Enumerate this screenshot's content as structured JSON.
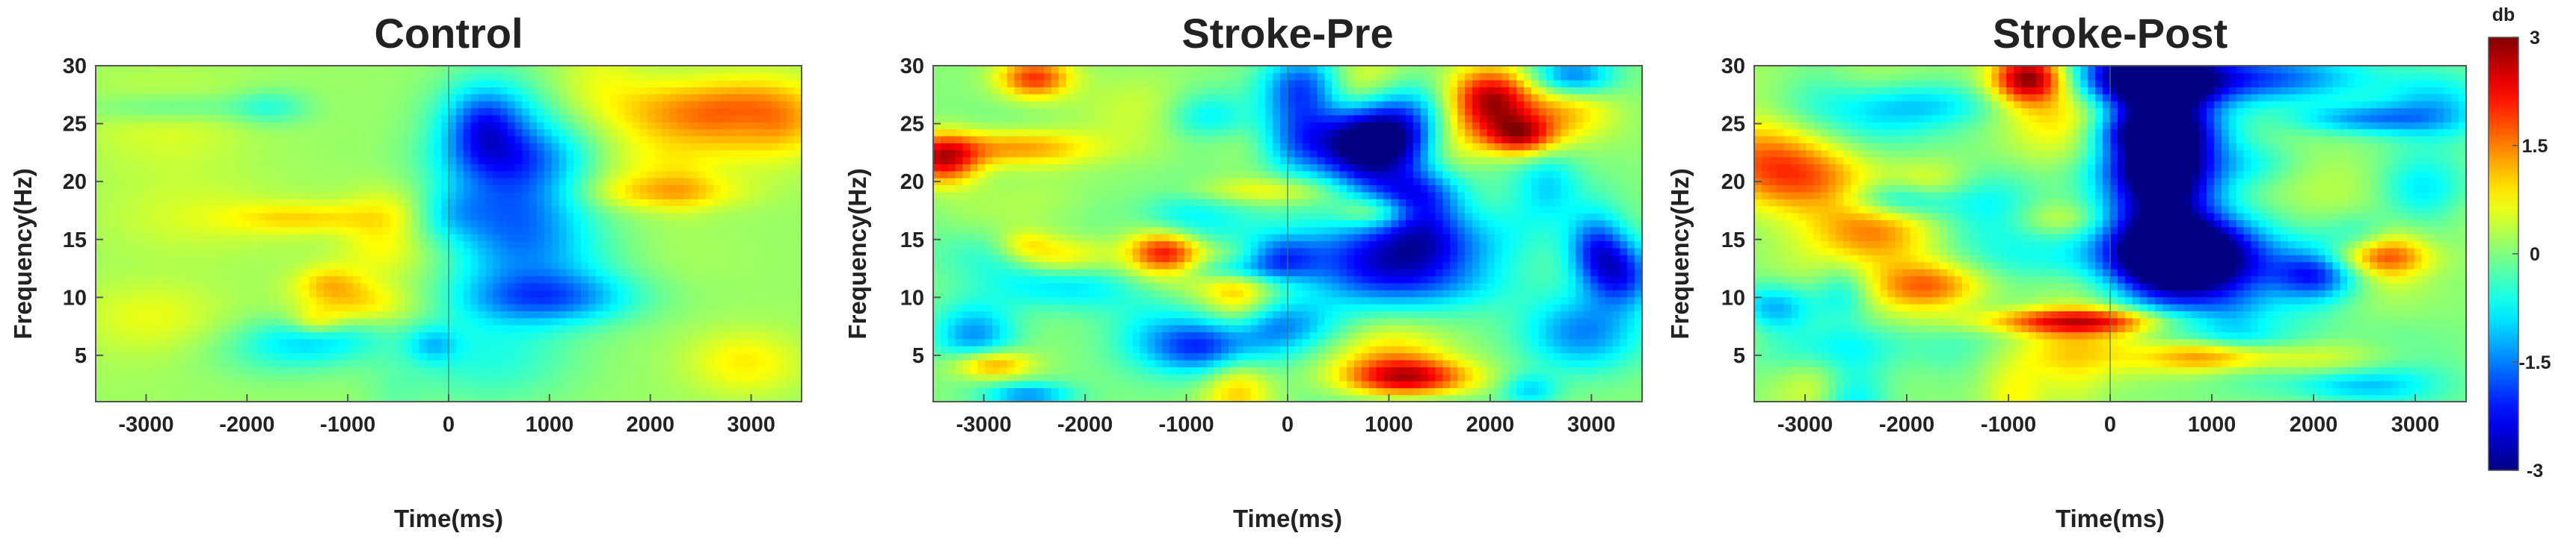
{
  "chart_data": [
    {
      "type": "heatmap",
      "title": "Control",
      "xlabel": "Time(ms)",
      "ylabel": "Frequency(Hz)",
      "x_ticks": [
        -3000,
        -2000,
        -1000,
        0,
        1000,
        2000,
        3000
      ],
      "y_ticks": [
        5,
        10,
        15,
        20,
        25,
        30
      ],
      "xlim": [
        -3500,
        3500
      ],
      "ylim": [
        1,
        30
      ],
      "grid": false,
      "baseline_db": 0.15,
      "noise_db": 0.55,
      "seed": 7,
      "features": [
        {
          "t": 600,
          "f": 20,
          "st": 500,
          "sf": 5,
          "db": -1.9
        },
        {
          "t": 350,
          "f": 25,
          "st": 300,
          "sf": 2.5,
          "db": -1.2
        },
        {
          "t": 1000,
          "f": 10,
          "st": 600,
          "sf": 1.6,
          "db": -1.5
        },
        {
          "t": 900,
          "f": 14,
          "st": 600,
          "sf": 3,
          "db": -0.8
        },
        {
          "t": 2900,
          "f": 26,
          "st": 500,
          "sf": 2,
          "db": 0.8
        },
        {
          "t": -2800,
          "f": 25,
          "st": 600,
          "sf": 3,
          "db": 0.4
        },
        {
          "t": -2500,
          "f": 17,
          "st": 700,
          "sf": 2.5,
          "db": 0.35
        },
        {
          "t": 400,
          "f": 5,
          "st": 600,
          "sf": 3,
          "db": -0.7
        }
      ]
    },
    {
      "type": "heatmap",
      "title": "Stroke-Pre",
      "xlabel": "Time(ms)",
      "ylabel": "Frequency(Hz)",
      "x_ticks": [
        -3000,
        -2000,
        -1000,
        0,
        1000,
        2000,
        3000
      ],
      "y_ticks": [
        5,
        10,
        15,
        20,
        25,
        30
      ],
      "xlim": [
        -3500,
        3500
      ],
      "ylim": [
        1,
        30
      ],
      "grid": false,
      "baseline_db": 0.05,
      "noise_db": 1.05,
      "seed": 21,
      "features": [
        {
          "t": 1000,
          "f": 24,
          "st": 500,
          "sf": 2.5,
          "db": -3.2
        },
        {
          "t": 200,
          "f": 28,
          "st": 300,
          "sf": 2,
          "db": -2.6
        },
        {
          "t": 1100,
          "f": 13,
          "st": 700,
          "sf": 2.5,
          "db": -2.9
        },
        {
          "t": 1300,
          "f": 19,
          "st": 400,
          "sf": 1.5,
          "db": -1.6
        },
        {
          "t": 2000,
          "f": 27,
          "st": 300,
          "sf": 2,
          "db": 2.8
        },
        {
          "t": 2300,
          "f": 24,
          "st": 250,
          "sf": 1.2,
          "db": 2.2
        },
        {
          "t": 1200,
          "f": 3,
          "st": 450,
          "sf": 1.2,
          "db": 2.8
        },
        {
          "t": -3400,
          "f": 22,
          "st": 250,
          "sf": 1.5,
          "db": 2.4
        },
        {
          "t": -1200,
          "f": 14,
          "st": 250,
          "sf": 1.3,
          "db": 2.2
        },
        {
          "t": -2500,
          "f": 29,
          "st": 250,
          "sf": 1.2,
          "db": 1.9
        },
        {
          "t": -800,
          "f": 25,
          "st": 300,
          "sf": 2,
          "db": -1.4
        },
        {
          "t": 3300,
          "f": 12,
          "st": 250,
          "sf": 2,
          "db": -2.0
        }
      ]
    },
    {
      "type": "heatmap",
      "title": "Stroke-Post",
      "xlabel": "Time(ms)",
      "ylabel": "Frequency(Hz)",
      "x_ticks": [
        -3000,
        -2000,
        -1000,
        0,
        1000,
        2000,
        3000
      ],
      "y_ticks": [
        5,
        10,
        15,
        20,
        25,
        30
      ],
      "xlim": [
        -3500,
        3500
      ],
      "ylim": [
        1,
        30
      ],
      "grid": false,
      "baseline_db": 0.05,
      "noise_db": 0.95,
      "seed": 42,
      "features": [
        {
          "t": 500,
          "f": 22,
          "st": 380,
          "sf": 6,
          "db": -3.4
        },
        {
          "t": 700,
          "f": 13,
          "st": 600,
          "sf": 2.5,
          "db": -3.5
        },
        {
          "t": 300,
          "f": 29,
          "st": 500,
          "sf": 2,
          "db": -2.9
        },
        {
          "t": 1500,
          "f": 29,
          "st": 700,
          "sf": 1.5,
          "db": -1.8
        },
        {
          "t": -800,
          "f": 29,
          "st": 250,
          "sf": 1.5,
          "db": 2.9
        },
        {
          "t": -300,
          "f": 8,
          "st": 700,
          "sf": 0.8,
          "db": 2.3
        },
        {
          "t": 1100,
          "f": 5,
          "st": 500,
          "sf": 1,
          "db": 1.9
        },
        {
          "t": -1800,
          "f": 11,
          "st": 400,
          "sf": 1.5,
          "db": 1.7
        },
        {
          "t": -3300,
          "f": 9,
          "st": 300,
          "sf": 1.5,
          "db": -1.9
        },
        {
          "t": 2000,
          "f": 12,
          "st": 300,
          "sf": 1.5,
          "db": -1.6
        }
      ]
    }
  ],
  "colorbar": {
    "title": "db",
    "min": -3,
    "max": 3,
    "ticks": [
      3,
      1.5,
      0,
      -1.5,
      -3
    ],
    "tick_labels": [
      "3",
      "1.5",
      "0",
      "-1.5",
      "-3"
    ],
    "colormap": "jet"
  }
}
